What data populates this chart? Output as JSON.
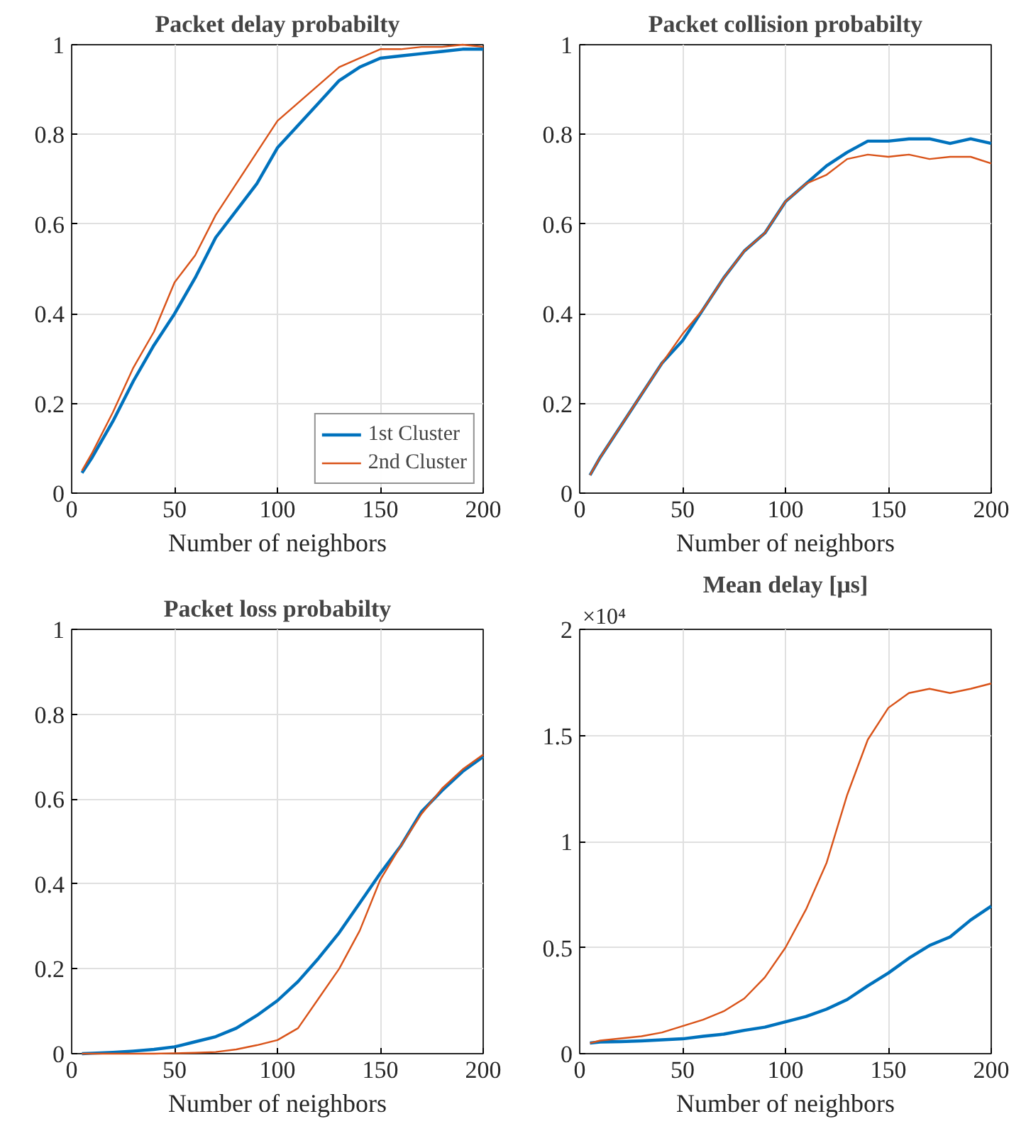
{
  "chart_data": [
    {
      "type": "line",
      "title": "Packet delay probabilty",
      "xlabel": "Number of neighbors",
      "x": [
        5,
        10,
        20,
        30,
        40,
        50,
        60,
        70,
        80,
        90,
        100,
        110,
        120,
        130,
        140,
        150,
        160,
        170,
        180,
        190,
        200
      ],
      "xlim": [
        0,
        200
      ],
      "xticks": [
        0,
        50,
        100,
        150,
        200
      ],
      "ylim": [
        0,
        1
      ],
      "yticks": [
        0,
        0.2,
        0.4,
        0.6,
        0.8,
        1
      ],
      "grid": true,
      "legend": "bottom right",
      "series": [
        {
          "name": "1st Cluster",
          "color": "#0072bd",
          "values": [
            0.045,
            0.08,
            0.16,
            0.25,
            0.33,
            0.4,
            0.48,
            0.57,
            0.63,
            0.69,
            0.77,
            0.82,
            0.87,
            0.92,
            0.95,
            0.97,
            0.975,
            0.98,
            0.985,
            0.99,
            0.99
          ]
        },
        {
          "name": "2nd Cluster",
          "color": "#d95319",
          "values": [
            0.05,
            0.09,
            0.18,
            0.28,
            0.36,
            0.47,
            0.53,
            0.62,
            0.69,
            0.76,
            0.83,
            0.87,
            0.91,
            0.95,
            0.97,
            0.99,
            0.99,
            0.995,
            0.995,
            1.0,
            0.995
          ]
        }
      ]
    },
    {
      "type": "line",
      "title": "Packet collision probabilty",
      "xlabel": "Number of neighbors",
      "x": [
        5,
        10,
        20,
        30,
        40,
        50,
        60,
        70,
        80,
        90,
        100,
        110,
        120,
        130,
        140,
        150,
        160,
        170,
        180,
        190,
        200
      ],
      "xlim": [
        0,
        200
      ],
      "xticks": [
        0,
        50,
        100,
        150,
        200
      ],
      "ylim": [
        0,
        1
      ],
      "yticks": [
        0,
        0.2,
        0.4,
        0.6,
        0.8,
        1
      ],
      "grid": true,
      "series": [
        {
          "color": "#0072bd",
          "values": [
            0.04,
            0.08,
            0.15,
            0.22,
            0.29,
            0.34,
            0.41,
            0.48,
            0.54,
            0.58,
            0.65,
            0.69,
            0.73,
            0.76,
            0.785,
            0.785,
            0.79,
            0.79,
            0.78,
            0.79,
            0.78
          ]
        },
        {
          "color": "#d95319",
          "values": [
            0.04,
            0.08,
            0.15,
            0.22,
            0.29,
            0.355,
            0.41,
            0.48,
            0.54,
            0.58,
            0.65,
            0.69,
            0.71,
            0.745,
            0.755,
            0.75,
            0.755,
            0.745,
            0.75,
            0.75,
            0.735
          ]
        }
      ]
    },
    {
      "type": "line",
      "title": "Packet loss probabilty",
      "xlabel": "Number of neighbors",
      "x": [
        5,
        10,
        20,
        30,
        40,
        50,
        60,
        70,
        80,
        90,
        100,
        110,
        120,
        130,
        140,
        150,
        160,
        170,
        180,
        190,
        200
      ],
      "xlim": [
        0,
        200
      ],
      "xticks": [
        0,
        50,
        100,
        150,
        200
      ],
      "ylim": [
        0,
        1
      ],
      "yticks": [
        0,
        0.2,
        0.4,
        0.6,
        0.8,
        1
      ],
      "grid": true,
      "series": [
        {
          "color": "#0072bd",
          "values": [
            0,
            0.001,
            0.003,
            0.006,
            0.01,
            0.016,
            0.028,
            0.04,
            0.06,
            0.09,
            0.125,
            0.17,
            0.225,
            0.285,
            0.355,
            0.425,
            0.49,
            0.57,
            0.62,
            0.665,
            0.7
          ]
        },
        {
          "color": "#d95319",
          "values": [
            0,
            0,
            0,
            0,
            0,
            0.001,
            0.002,
            0.004,
            0.01,
            0.02,
            0.032,
            0.06,
            0.13,
            0.2,
            0.29,
            0.41,
            0.49,
            0.565,
            0.625,
            0.67,
            0.705
          ]
        }
      ]
    },
    {
      "type": "line",
      "title": "Mean delay [μs]",
      "xlabel": "Number of neighbors",
      "annotations": [
        "×10⁴"
      ],
      "x": [
        5,
        10,
        20,
        30,
        40,
        50,
        60,
        70,
        80,
        90,
        100,
        110,
        120,
        130,
        140,
        150,
        160,
        170,
        180,
        190,
        200
      ],
      "xlim": [
        0,
        200
      ],
      "xticks": [
        0,
        50,
        100,
        150,
        200
      ],
      "ylim": [
        0,
        2
      ],
      "yticks": [
        0,
        0.5,
        1,
        1.5,
        2
      ],
      "grid": true,
      "series": [
        {
          "color": "#0072bd",
          "values": [
            0.05,
            0.055,
            0.057,
            0.06,
            0.065,
            0.07,
            0.082,
            0.092,
            0.11,
            0.125,
            0.15,
            0.175,
            0.21,
            0.255,
            0.32,
            0.38,
            0.45,
            0.51,
            0.55,
            0.63,
            0.695
          ]
        },
        {
          "color": "#d95319",
          "values": [
            0.05,
            0.062,
            0.072,
            0.082,
            0.1,
            0.13,
            0.16,
            0.2,
            0.26,
            0.36,
            0.5,
            0.68,
            0.9,
            1.22,
            1.48,
            1.63,
            1.7,
            1.72,
            1.7,
            1.72,
            1.745
          ]
        }
      ]
    }
  ]
}
